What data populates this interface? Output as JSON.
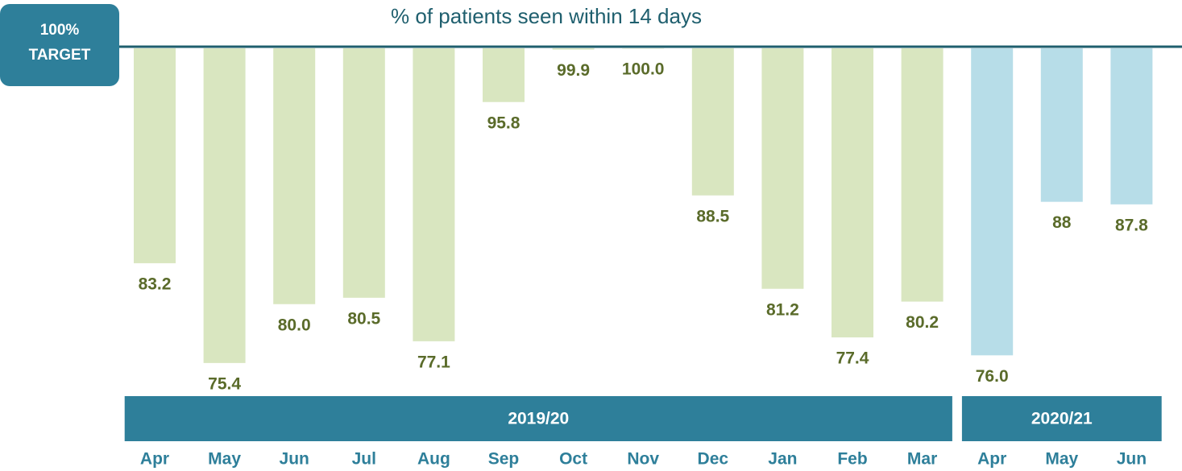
{
  "chart_data": {
    "type": "bar",
    "title": "% of patients seen within 14 days",
    "annotation": [
      "100%",
      "TARGET"
    ],
    "categories": [
      "Apr",
      "May",
      "Jun",
      "Jul",
      "Aug",
      "Sep",
      "Oct",
      "Nov",
      "Dec",
      "Jan",
      "Feb",
      "Mar",
      "Apr",
      "May",
      "Jun"
    ],
    "series": [
      {
        "name": "2019/20",
        "color": "#d9e6c0",
        "values": [
          83.2,
          75.4,
          80.0,
          80.5,
          77.1,
          95.8,
          99.9,
          100.0,
          88.5,
          81.2,
          77.4,
          80.2,
          null,
          null,
          null
        ],
        "value_labels": [
          "83.2",
          "75.4",
          "80.0",
          "80.5",
          "77.1",
          "95.8",
          "99.9",
          "100.0",
          "88.5",
          "81.2",
          "77.4",
          "80.2",
          null,
          null,
          null
        ]
      },
      {
        "name": "2020/21",
        "color": "#b7dde8",
        "values": [
          null,
          null,
          null,
          null,
          null,
          null,
          null,
          null,
          null,
          null,
          null,
          null,
          76.0,
          88,
          87.8
        ],
        "value_labels": [
          null,
          null,
          null,
          null,
          null,
          null,
          null,
          null,
          null,
          null,
          null,
          null,
          "76.0",
          "88",
          "87.8"
        ]
      }
    ],
    "ylim": [
      73,
      100
    ]
  }
}
